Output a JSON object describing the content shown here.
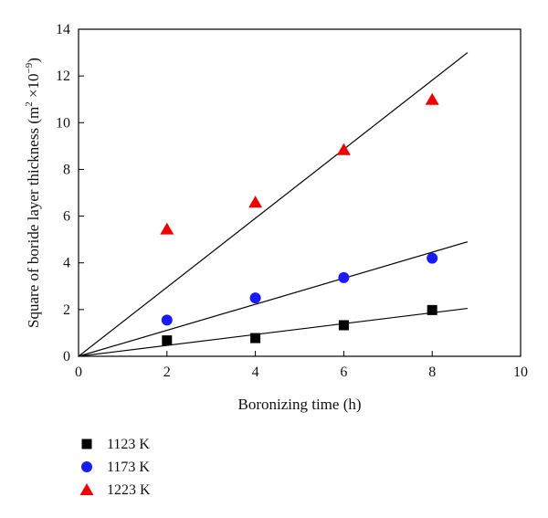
{
  "chart_data": {
    "type": "scatter",
    "xlabel": "Boronizing time (h)",
    "ylabel": "Square of boride layer thickness (m",
    "ylabel_sup1": "2",
    "ylabel_mid": " ×10",
    "ylabel_sup2": "−9",
    "ylabel_end": ")",
    "xlim": [
      0,
      10
    ],
    "ylim": [
      0,
      14
    ],
    "xticks": [
      0,
      2,
      4,
      6,
      8,
      10
    ],
    "yticks": [
      0,
      2,
      4,
      6,
      8,
      10,
      12,
      14
    ],
    "grid": false,
    "legend_position": "below",
    "series": [
      {
        "name": "1123 K",
        "marker": "square",
        "color": "#000000",
        "x": [
          2,
          4,
          6,
          8
        ],
        "y": [
          0.68,
          0.78,
          1.33,
          1.98
        ],
        "fit_line": [
          [
            0,
            0
          ],
          [
            8.8,
            2.05
          ]
        ]
      },
      {
        "name": "1173 K",
        "marker": "circle",
        "color": "#1a1aff",
        "x": [
          2,
          4,
          6,
          8
        ],
        "y": [
          1.55,
          2.5,
          3.37,
          4.2
        ],
        "fit_line": [
          [
            0,
            0
          ],
          [
            8.8,
            4.9
          ]
        ]
      },
      {
        "name": "1223 K",
        "marker": "triangle",
        "color": "#ee0000",
        "x": [
          2,
          4,
          6,
          8
        ],
        "y": [
          5.45,
          6.6,
          8.85,
          11.0
        ],
        "fit_line": [
          [
            0,
            0
          ],
          [
            8.8,
            13.0
          ]
        ]
      }
    ]
  }
}
